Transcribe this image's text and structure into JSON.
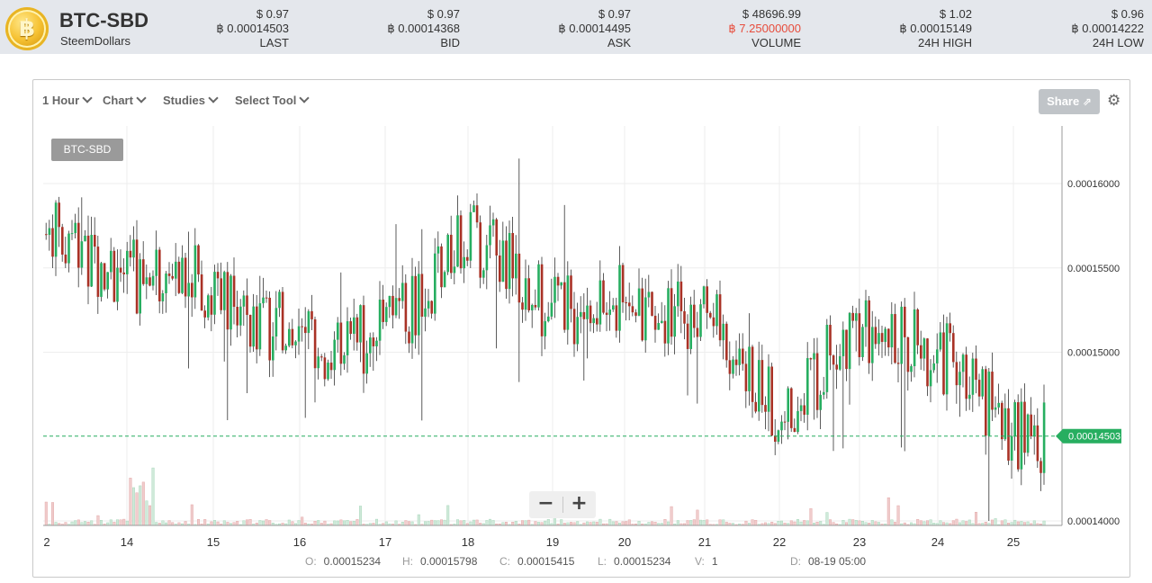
{
  "header": {
    "pair": "BTC-SBD",
    "name": "SteemDollars",
    "logo_glyph": "฿",
    "stats": [
      {
        "usd": "$ 0.97",
        "btc": "฿ 0.00014503",
        "label": "LAST"
      },
      {
        "usd": "$ 0.97",
        "btc": "฿ 0.00014368",
        "label": "BID"
      },
      {
        "usd": "$ 0.97",
        "btc": "฿ 0.00014495",
        "label": "ASK"
      },
      {
        "usd": "$ 48696.99",
        "btc": "฿ 7.25000000",
        "label": "VOLUME"
      },
      {
        "usd": "$ 1.02",
        "btc": "฿ 0.00015149",
        "label": "24H HIGH"
      },
      {
        "usd": "$ 0.96",
        "btc": "฿ 0.00014222",
        "label": "24H LOW"
      }
    ]
  },
  "toolbar": {
    "interval": "1 Hour",
    "chart": "Chart",
    "studies": "Studies",
    "select_tool": "Select Tool",
    "share": "Share"
  },
  "legend_tag": "BTC-SBD",
  "zoom": {
    "minus": "−",
    "plus": "+"
  },
  "ohlc": {
    "o_label": "O:",
    "o": "0.00015234",
    "h_label": "H:",
    "h": "0.00015798",
    "c_label": "C:",
    "c": "0.00015415",
    "l_label": "L:",
    "l": "0.00015234",
    "v_label": "V:",
    "v": "1",
    "d_label": "D:",
    "d": "08-19 05:00"
  },
  "colors": {
    "up": "#27ae60",
    "down": "#a93226",
    "grid": "#eeeeee",
    "last": "#27ae60"
  },
  "chart_data": {
    "type": "candlestick",
    "title": "",
    "x_ticks": [
      "2",
      "14",
      "15",
      "16",
      "17",
      "18",
      "19",
      "20",
      "21",
      "22",
      "23",
      "24",
      "25"
    ],
    "y_ticks": [
      "0.00016000",
      "0.00015500",
      "0.00015000",
      "0.00014000"
    ],
    "ylim": [
      0.00014,
      0.000164
    ],
    "last_price": "0.00014503",
    "grid": true,
    "anchors": [
      {
        "day": "2",
        "close": 0.000157
      },
      {
        "day": "14",
        "close": 0.0001545
      },
      {
        "day": "15",
        "close": 0.000154
      },
      {
        "day": "16",
        "close": 0.0001505
      },
      {
        "day": "17",
        "close": 0.000151
      },
      {
        "day": "18",
        "close": 0.0001572
      },
      {
        "day": "19",
        "close": 0.0001525
      },
      {
        "day": "20",
        "close": 0.000153
      },
      {
        "day": "21",
        "close": 0.000152
      },
      {
        "day": "22",
        "close": 0.0001465
      },
      {
        "day": "23",
        "close": 0.0001515
      },
      {
        "day": "24",
        "close": 0.00015
      },
      {
        "day": "25",
        "close": 0.000145
      }
    ]
  }
}
